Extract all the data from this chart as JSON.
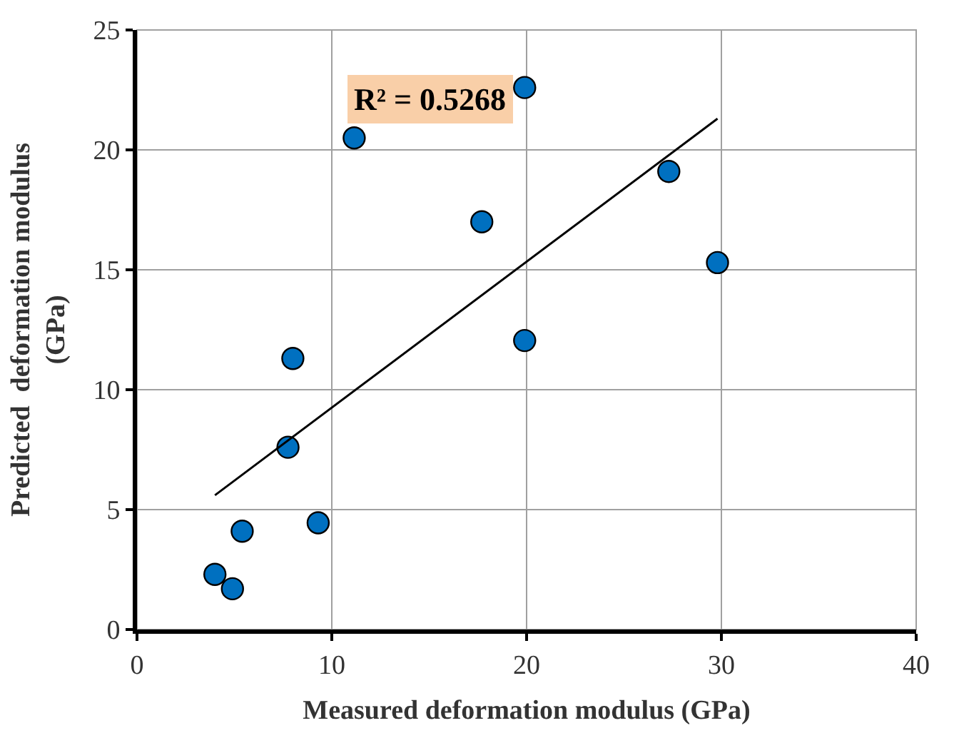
{
  "chart_data": {
    "type": "scatter",
    "xlabel": "Measured deformation modulus (GPa)",
    "ylabel": "Predicted  deformation modulus (GPa)",
    "annotations": [
      "R² = 0.5268"
    ],
    "series": [
      {
        "color": "#0070c0",
        "marker": "circle",
        "x": [
          4.0,
          4.9,
          5.4,
          7.75,
          8.0,
          9.3,
          11.15,
          17.7,
          19.9,
          19.9,
          27.3,
          29.8
        ],
        "values": [
          2.3,
          1.7,
          4.1,
          7.6,
          11.3,
          4.45,
          20.5,
          17.0,
          22.6,
          12.05,
          19.1,
          15.3
        ]
      },
      {
        "type": "line",
        "color": "#000000",
        "marker": "none",
        "line_style": "solid",
        "x": [
          4.0,
          29.8
        ],
        "values": [
          5.6,
          21.3
        ]
      }
    ],
    "xlim": [
      0,
      40
    ],
    "xticks": [
      0,
      10,
      20,
      30,
      40
    ],
    "ylim": [
      0,
      25
    ],
    "yticks": [
      0,
      5,
      10,
      15,
      20,
      25
    ],
    "grid": true,
    "legend": false
  }
}
